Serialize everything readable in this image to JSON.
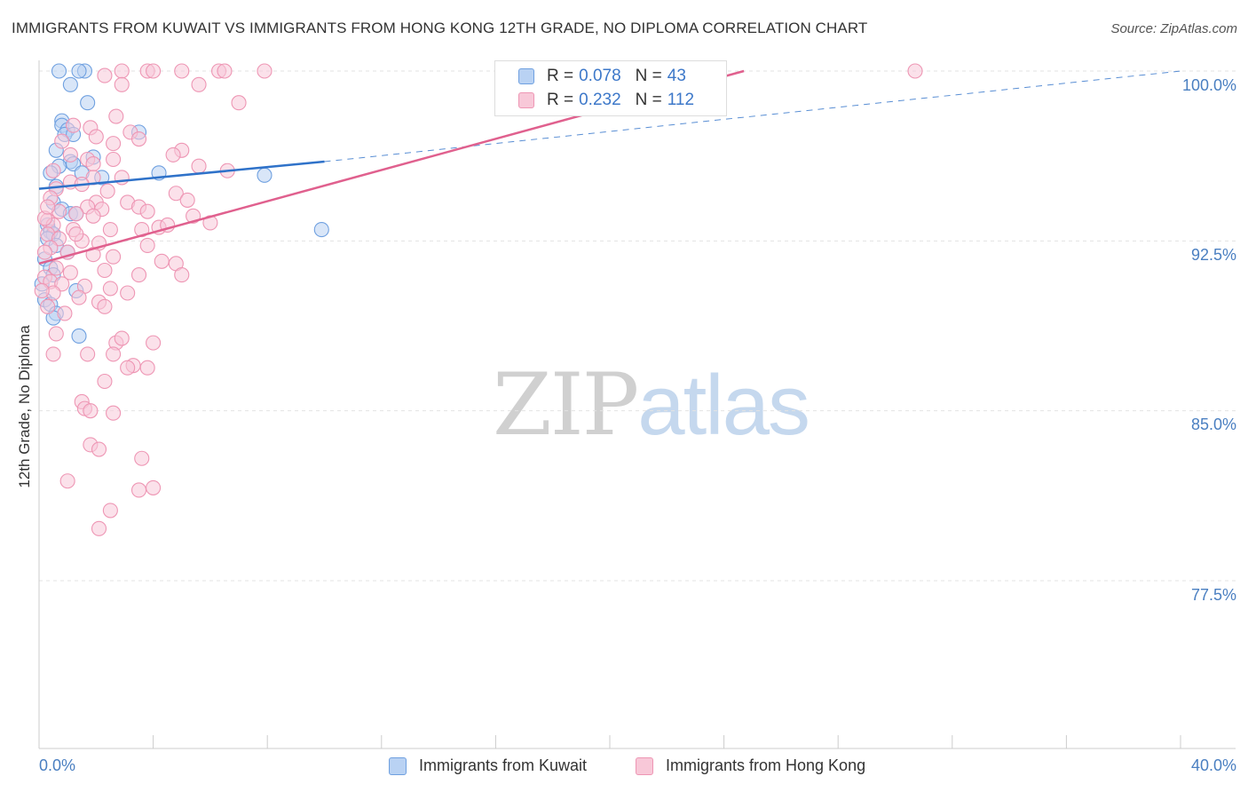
{
  "chart_data": {
    "type": "scatter",
    "title": "IMMIGRANTS FROM KUWAIT VS IMMIGRANTS FROM HONG KONG 12TH GRADE, NO DIPLOMA CORRELATION CHART",
    "source": "Source: ZipAtlas.com",
    "ylabel": "12th Grade, No Diploma",
    "xlim": [
      0,
      40
    ],
    "ylim": [
      70,
      101.5
    ],
    "x_ticks": [
      "0.0%",
      "40.0%"
    ],
    "y_ticks": [
      {
        "value": 100,
        "label": "100.0%"
      },
      {
        "value": 92.5,
        "label": "92.5%"
      },
      {
        "value": 85,
        "label": "85.0%"
      },
      {
        "value": 77.5,
        "label": "77.5%"
      }
    ],
    "grid": true,
    "legend_placement": "top-center",
    "watermark": {
      "zip": "ZIP",
      "atlas": "atlas"
    },
    "series": [
      {
        "name": "Immigrants from Kuwait",
        "color": "#6fa0e0",
        "fill": "#b9d2f3",
        "line_color": "#2f72c9",
        "R": "0.078",
        "N": "43",
        "trend_solid": [
          [
            0,
            94.8
          ],
          [
            10,
            96.0
          ]
        ],
        "trend_dashed": [
          [
            10,
            96.0
          ],
          [
            40,
            100.0
          ]
        ],
        "points": [
          [
            0.7,
            100
          ],
          [
            1.6,
            100
          ],
          [
            1.4,
            100
          ],
          [
            1.1,
            99.4
          ],
          [
            1.7,
            98.6
          ],
          [
            0.8,
            97.8
          ],
          [
            0.8,
            97.6
          ],
          [
            1.0,
            97.4
          ],
          [
            0.9,
            97.2
          ],
          [
            1.2,
            97.2
          ],
          [
            3.5,
            97.3
          ],
          [
            0.6,
            96.5
          ],
          [
            1.1,
            96.0
          ],
          [
            1.2,
            95.9
          ],
          [
            0.7,
            95.8
          ],
          [
            1.9,
            96.2
          ],
          [
            0.4,
            95.5
          ],
          [
            1.5,
            95.5
          ],
          [
            2.2,
            95.3
          ],
          [
            4.2,
            95.5
          ],
          [
            7.9,
            95.4
          ],
          [
            0.6,
            94.9
          ],
          [
            0.5,
            94.2
          ],
          [
            0.8,
            93.9
          ],
          [
            1.1,
            93.7
          ],
          [
            1.3,
            93.7
          ],
          [
            0.3,
            93.2
          ],
          [
            0.4,
            92.9
          ],
          [
            0.5,
            92.8
          ],
          [
            0.3,
            92.6
          ],
          [
            0.6,
            92.3
          ],
          [
            1.0,
            92.0
          ],
          [
            0.2,
            91.7
          ],
          [
            0.4,
            91.3
          ],
          [
            0.5,
            91.0
          ],
          [
            1.3,
            90.3
          ],
          [
            0.2,
            89.9
          ],
          [
            0.4,
            89.7
          ],
          [
            0.6,
            89.3
          ],
          [
            0.5,
            89.1
          ],
          [
            1.4,
            88.3
          ],
          [
            9.9,
            93.0
          ],
          [
            0.1,
            90.6
          ]
        ]
      },
      {
        "name": "Immigrants from Hong Kong",
        "color": "#ee96b4",
        "fill": "#f8c8d8",
        "line_color": "#e0608e",
        "R": "0.232",
        "N": "112",
        "trend_solid": [
          [
            0,
            91.5
          ],
          [
            24.7,
            100.0
          ]
        ],
        "points": [
          [
            2.3,
            99.8
          ],
          [
            2.9,
            100
          ],
          [
            3.8,
            100
          ],
          [
            4.0,
            100
          ],
          [
            5.0,
            100
          ],
          [
            6.3,
            100
          ],
          [
            6.5,
            100
          ],
          [
            7.9,
            100
          ],
          [
            30.7,
            100
          ],
          [
            2.9,
            99.4
          ],
          [
            5.6,
            99.4
          ],
          [
            7.0,
            98.6
          ],
          [
            2.7,
            98.0
          ],
          [
            1.2,
            97.6
          ],
          [
            1.8,
            97.5
          ],
          [
            3.2,
            97.3
          ],
          [
            2.0,
            97.1
          ],
          [
            2.6,
            96.8
          ],
          [
            3.5,
            97.0
          ],
          [
            0.8,
            96.9
          ],
          [
            5.0,
            96.5
          ],
          [
            4.7,
            96.3
          ],
          [
            1.1,
            96.3
          ],
          [
            1.7,
            96.1
          ],
          [
            2.6,
            96.1
          ],
          [
            1.9,
            95.9
          ],
          [
            5.6,
            95.8
          ],
          [
            0.5,
            95.6
          ],
          [
            6.6,
            95.6
          ],
          [
            1.9,
            95.3
          ],
          [
            1.1,
            95.1
          ],
          [
            1.5,
            95.0
          ],
          [
            2.9,
            95.3
          ],
          [
            0.6,
            94.8
          ],
          [
            2.4,
            94.7
          ],
          [
            4.8,
            94.6
          ],
          [
            0.4,
            94.4
          ],
          [
            2.0,
            94.2
          ],
          [
            1.7,
            94.0
          ],
          [
            3.1,
            94.2
          ],
          [
            3.5,
            94.0
          ],
          [
            0.7,
            93.8
          ],
          [
            1.3,
            93.7
          ],
          [
            2.2,
            93.9
          ],
          [
            3.8,
            93.8
          ],
          [
            1.9,
            93.6
          ],
          [
            5.4,
            93.6
          ],
          [
            0.3,
            93.4
          ],
          [
            0.5,
            93.2
          ],
          [
            1.2,
            93.0
          ],
          [
            2.5,
            93.0
          ],
          [
            3.6,
            93.0
          ],
          [
            4.2,
            93.1
          ],
          [
            0.3,
            92.8
          ],
          [
            0.7,
            92.6
          ],
          [
            1.5,
            92.5
          ],
          [
            2.1,
            92.4
          ],
          [
            3.8,
            92.3
          ],
          [
            0.4,
            92.2
          ],
          [
            1.0,
            92.0
          ],
          [
            1.9,
            91.9
          ],
          [
            2.6,
            91.8
          ],
          [
            4.3,
            91.6
          ],
          [
            4.8,
            91.5
          ],
          [
            0.6,
            91.3
          ],
          [
            1.1,
            91.1
          ],
          [
            2.3,
            91.2
          ],
          [
            3.5,
            91.0
          ],
          [
            5.0,
            91.0
          ],
          [
            0.2,
            90.9
          ],
          [
            0.4,
            90.7
          ],
          [
            0.8,
            90.6
          ],
          [
            1.6,
            90.5
          ],
          [
            2.5,
            90.4
          ],
          [
            3.1,
            90.2
          ],
          [
            0.5,
            90.2
          ],
          [
            1.4,
            90.0
          ],
          [
            2.1,
            89.8
          ],
          [
            0.3,
            89.6
          ],
          [
            0.9,
            89.3
          ],
          [
            2.3,
            89.6
          ],
          [
            0.6,
            88.4
          ],
          [
            2.7,
            88.0
          ],
          [
            2.9,
            88.2
          ],
          [
            4.0,
            88.0
          ],
          [
            0.5,
            87.5
          ],
          [
            1.7,
            87.5
          ],
          [
            2.6,
            87.5
          ],
          [
            3.3,
            87.0
          ],
          [
            3.1,
            86.9
          ],
          [
            3.8,
            86.9
          ],
          [
            2.3,
            86.3
          ],
          [
            1.5,
            85.4
          ],
          [
            1.6,
            85.1
          ],
          [
            1.8,
            85.0
          ],
          [
            2.6,
            84.9
          ],
          [
            1.8,
            83.5
          ],
          [
            2.1,
            83.3
          ],
          [
            3.6,
            82.9
          ],
          [
            1.0,
            81.9
          ],
          [
            4.0,
            81.6
          ],
          [
            3.5,
            81.5
          ],
          [
            2.5,
            80.6
          ],
          [
            2.1,
            79.8
          ],
          [
            0.1,
            90.3
          ],
          [
            0.2,
            93.5
          ],
          [
            0.2,
            92.0
          ],
          [
            0.3,
            94.0
          ],
          [
            4.5,
            93.2
          ],
          [
            5.2,
            94.3
          ],
          [
            6.0,
            93.3
          ],
          [
            1.3,
            92.8
          ]
        ]
      }
    ]
  }
}
